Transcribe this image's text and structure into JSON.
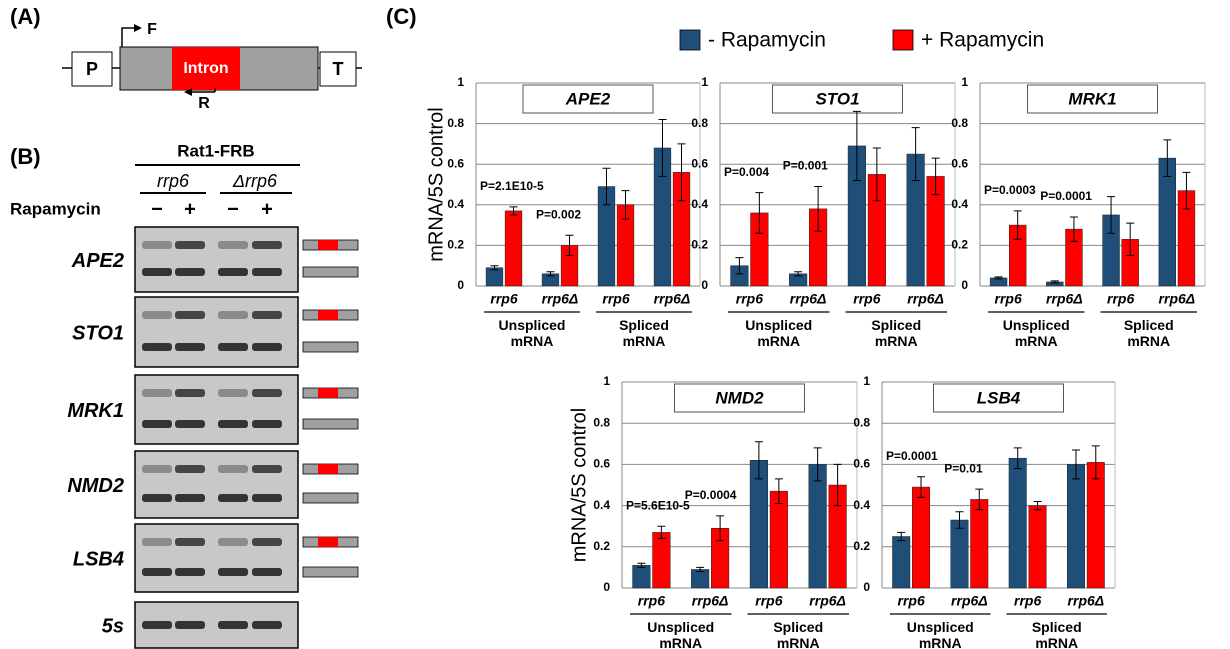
{
  "panel_a": {
    "label": "(A)",
    "promoter": "P",
    "forward_primer": "F",
    "intron": "Intron",
    "reverse_primer": "R",
    "terminator": "T"
  },
  "panel_b": {
    "label": "(B)",
    "strain": "Rat1-FRB",
    "genotypes": [
      "rrp6",
      "Δrrp6"
    ],
    "treatment": "Rapamycin",
    "lanes": [
      "−",
      "+",
      "−",
      "+"
    ],
    "genes": [
      "APE2",
      "STO1",
      "MRK1",
      "NMD2",
      "LSB4",
      "5s"
    ]
  },
  "panel_c": {
    "label": "(C)"
  },
  "legend": [
    {
      "name": "- Rapamycin",
      "color": "#1f4e79"
    },
    {
      "name": "+ Rapamycin",
      "color": "#ff0000"
    }
  ],
  "chart_data": [
    {
      "type": "bar",
      "title": "APE2",
      "ylabel": "mRNA/5S control",
      "categories": [
        "rrp6",
        "rrp6Δ",
        "rrp6",
        "rrp6Δ"
      ],
      "groups": [
        "Unspliced mRNA",
        "Spliced mRNA"
      ],
      "p_values": [
        "P=2.1E10-5",
        "P=0.002",
        null,
        null
      ],
      "series": [
        {
          "values": [
            0.09,
            0.06,
            0.49,
            0.68
          ],
          "errors": [
            0.01,
            0.01,
            0.09,
            0.14
          ]
        },
        {
          "values": [
            0.37,
            0.2,
            0.4,
            0.56
          ],
          "errors": [
            0.02,
            0.05,
            0.07,
            0.14
          ]
        }
      ],
      "ylim": [
        0,
        1
      ],
      "yticks": [
        0,
        0.2,
        0.4,
        0.6,
        0.8,
        1
      ],
      "grid": true
    },
    {
      "type": "bar",
      "title": "STO1",
      "categories": [
        "rrp6",
        "rrp6Δ",
        "rrp6",
        "rrp6Δ"
      ],
      "groups": [
        "Unspliced mRNA",
        "Spliced mRNA"
      ],
      "p_values": [
        "P=0.004",
        "P=0.001",
        null,
        null
      ],
      "series": [
        {
          "values": [
            0.1,
            0.06,
            0.69,
            0.65
          ],
          "errors": [
            0.04,
            0.01,
            0.17,
            0.13
          ]
        },
        {
          "values": [
            0.36,
            0.38,
            0.55,
            0.54
          ],
          "errors": [
            0.1,
            0.11,
            0.13,
            0.09
          ]
        }
      ],
      "ylim": [
        0,
        1
      ],
      "yticks": [
        0,
        0.2,
        0.4,
        0.6,
        0.8,
        1
      ],
      "grid": true
    },
    {
      "type": "bar",
      "title": "MRK1",
      "categories": [
        "rrp6",
        "rrp6Δ",
        "rrp6",
        "rrp6Δ"
      ],
      "groups": [
        "Unspliced mRNA",
        "Spliced mRNA"
      ],
      "p_values": [
        "P=0.0003",
        "P=0.0001",
        null,
        null
      ],
      "series": [
        {
          "values": [
            0.04,
            0.02,
            0.35,
            0.63
          ],
          "errors": [
            0.005,
            0.005,
            0.09,
            0.09
          ]
        },
        {
          "values": [
            0.3,
            0.28,
            0.23,
            0.47
          ],
          "errors": [
            0.07,
            0.06,
            0.08,
            0.09
          ]
        }
      ],
      "ylim": [
        0,
        1
      ],
      "yticks": [
        0,
        0.2,
        0.4,
        0.6,
        0.8,
        1
      ],
      "grid": true
    },
    {
      "type": "bar",
      "title": "NMD2",
      "ylabel": "mRNA/5S control",
      "categories": [
        "rrp6",
        "rrp6Δ",
        "rrp6",
        "rrp6Δ"
      ],
      "groups": [
        "Unspliced mRNA",
        "Spliced mRNA"
      ],
      "p_values": [
        "P=5.6E10-5",
        "P=0.0004",
        null,
        null
      ],
      "series": [
        {
          "values": [
            0.11,
            0.09,
            0.62,
            0.6
          ],
          "errors": [
            0.01,
            0.01,
            0.09,
            0.08
          ]
        },
        {
          "values": [
            0.27,
            0.29,
            0.47,
            0.5
          ],
          "errors": [
            0.03,
            0.06,
            0.06,
            0.1
          ]
        }
      ],
      "ylim": [
        0,
        1
      ],
      "yticks": [
        0,
        0.2,
        0.4,
        0.6,
        0.8,
        1
      ],
      "grid": true
    },
    {
      "type": "bar",
      "title": "LSB4",
      "categories": [
        "rrp6",
        "rrp6Δ",
        "rrp6",
        "rrp6Δ"
      ],
      "groups": [
        "Unspliced mRNA",
        "Spliced mRNA"
      ],
      "p_values": [
        "P=0.0001",
        "P=0.01",
        null,
        null
      ],
      "series": [
        {
          "values": [
            0.25,
            0.33,
            0.63,
            0.6
          ],
          "errors": [
            0.02,
            0.04,
            0.05,
            0.07
          ]
        },
        {
          "values": [
            0.49,
            0.43,
            0.4,
            0.61
          ],
          "errors": [
            0.05,
            0.05,
            0.02,
            0.08
          ]
        }
      ],
      "ylim": [
        0,
        1
      ],
      "yticks": [
        0,
        0.2,
        0.4,
        0.6,
        0.8,
        1
      ],
      "grid": true
    }
  ]
}
